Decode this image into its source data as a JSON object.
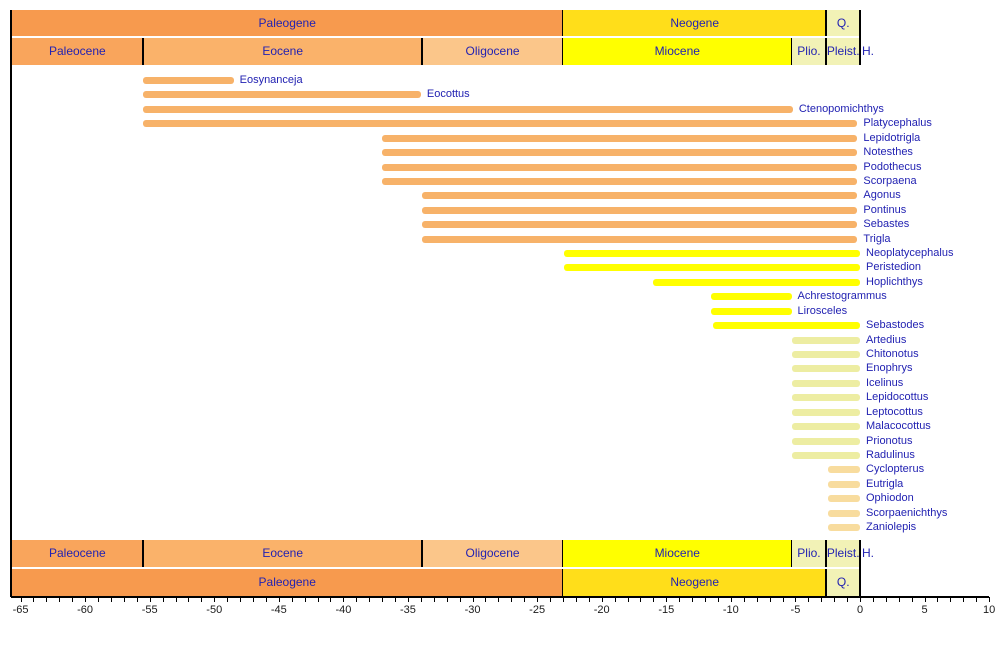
{
  "chart_data": {
    "type": "bar",
    "subtype": "horizontal-range-timeline",
    "title": "",
    "xlabel": "",
    "x_axis": {
      "unit": "Ma",
      "min": -65.7,
      "max": 10,
      "tick_interval": 1,
      "label_interval": 5,
      "tick_labels": [
        "-65",
        "-60",
        "-55",
        "-50",
        "-45",
        "-40",
        "-35",
        "-30",
        "-25",
        "-20",
        "-15",
        "-10",
        "-5",
        "0",
        "5",
        "10"
      ]
    },
    "period_bands": [
      {
        "label": "Paleogene",
        "start": -65.7,
        "end": -23,
        "color": "#F79A4E"
      },
      {
        "label": "Neogene",
        "start": -23,
        "end": -2.6,
        "color": "#FFDE1A"
      },
      {
        "label": "Q.",
        "start": -2.6,
        "end": 0,
        "color": "#F2F2B6"
      }
    ],
    "epoch_bands": [
      {
        "label": "Paleocene",
        "start": -65.7,
        "end": -55.5,
        "color": "#F9A55C"
      },
      {
        "label": "Eocene",
        "start": -55.5,
        "end": -33.9,
        "color": "#FAB26A"
      },
      {
        "label": "Oligocene",
        "start": -33.9,
        "end": -23,
        "color": "#FBC68A"
      },
      {
        "label": "Miocene",
        "start": -23,
        "end": -5.3,
        "color": "#FFFF00"
      },
      {
        "label": "Plio.",
        "start": -5.3,
        "end": -2.6,
        "color": "#F2F2B6"
      },
      {
        "label": "Pleist.",
        "start": -2.6,
        "end": 0,
        "color": "#F2F2B6"
      }
    ],
    "holocene_label": "H.",
    "bar_colors": {
      "sandy": "#F7B269",
      "yellow": "#FFFF00",
      "palegreen": "#EDEDA2",
      "paleorange": "#F8DC9E"
    },
    "text_color": "#2222B2",
    "taxa": [
      {
        "name": "Eosynanceja",
        "start": -55.5,
        "end": -48.5,
        "group": "sandy"
      },
      {
        "name": "Eocottus",
        "start": -55.5,
        "end": -34.0,
        "group": "sandy"
      },
      {
        "name": "Ctenopomichthys",
        "start": -55.5,
        "end": -5.2,
        "group": "sandy"
      },
      {
        "name": "Platycephalus",
        "start": -55.5,
        "end": -0.2,
        "group": "sandy"
      },
      {
        "name": "Lepidotrigla",
        "start": -37.0,
        "end": -0.2,
        "group": "sandy"
      },
      {
        "name": "Notesthes",
        "start": -37.0,
        "end": -0.2,
        "group": "sandy"
      },
      {
        "name": "Podothecus",
        "start": -37.0,
        "end": -0.2,
        "group": "sandy"
      },
      {
        "name": "Scorpaena",
        "start": -37.0,
        "end": -0.2,
        "group": "sandy"
      },
      {
        "name": "Agonus",
        "start": -33.9,
        "end": -0.2,
        "group": "sandy"
      },
      {
        "name": "Pontinus",
        "start": -33.9,
        "end": -0.2,
        "group": "sandy"
      },
      {
        "name": "Sebastes",
        "start": -33.9,
        "end": -0.2,
        "group": "sandy"
      },
      {
        "name": "Trigla",
        "start": -33.9,
        "end": -0.2,
        "group": "sandy"
      },
      {
        "name": "Neoplatycephalus",
        "start": -22.9,
        "end": 0,
        "group": "yellow"
      },
      {
        "name": "Peristedion",
        "start": -22.9,
        "end": 0,
        "group": "yellow"
      },
      {
        "name": "Hoplichthys",
        "start": -16.0,
        "end": 0,
        "group": "yellow"
      },
      {
        "name": "Achrestogrammus",
        "start": -11.5,
        "end": -5.3,
        "group": "yellow"
      },
      {
        "name": "Lirosceles",
        "start": -11.5,
        "end": -5.3,
        "group": "yellow"
      },
      {
        "name": "Sebastodes",
        "start": -11.4,
        "end": 0,
        "group": "yellow"
      },
      {
        "name": "Artedius",
        "start": -5.3,
        "end": 0,
        "group": "palegreen"
      },
      {
        "name": "Chitonotus",
        "start": -5.3,
        "end": 0,
        "group": "palegreen"
      },
      {
        "name": "Enophrys",
        "start": -5.3,
        "end": 0,
        "group": "palegreen"
      },
      {
        "name": "Icelinus",
        "start": -5.3,
        "end": 0,
        "group": "palegreen"
      },
      {
        "name": "Lepidocottus",
        "start": -5.3,
        "end": 0,
        "group": "palegreen"
      },
      {
        "name": "Leptocottus",
        "start": -5.3,
        "end": 0,
        "group": "palegreen"
      },
      {
        "name": "Malacocottus",
        "start": -5.3,
        "end": 0,
        "group": "palegreen"
      },
      {
        "name": "Prionotus",
        "start": -5.3,
        "end": 0,
        "group": "palegreen"
      },
      {
        "name": "Radulinus",
        "start": -5.3,
        "end": 0,
        "group": "palegreen"
      },
      {
        "name": "Cyclopterus",
        "start": -2.5,
        "end": 0,
        "group": "paleorange"
      },
      {
        "name": "Eutrigla",
        "start": -2.5,
        "end": 0,
        "group": "paleorange"
      },
      {
        "name": "Ophiodon",
        "start": -2.5,
        "end": 0,
        "group": "paleorange"
      },
      {
        "name": "Scorpaenichthys",
        "start": -2.5,
        "end": 0,
        "group": "paleorange"
      },
      {
        "name": "Zaniolepis",
        "start": -2.5,
        "end": 0,
        "group": "paleorange"
      }
    ]
  }
}
